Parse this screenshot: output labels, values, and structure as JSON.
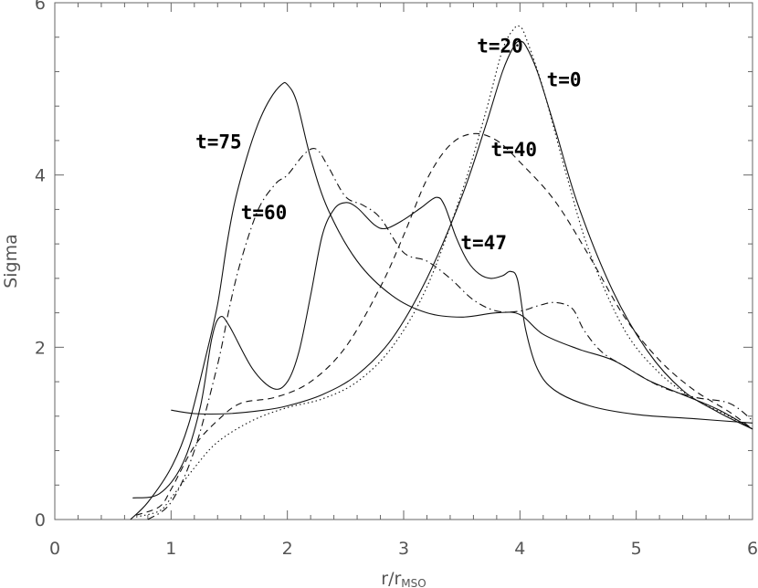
{
  "chart_data": {
    "type": "line",
    "xlabel": "r/r",
    "xlabel_sub": "MSO",
    "ylabel": "Sigma",
    "xlim": [
      0,
      6
    ],
    "ylim": [
      0,
      6
    ],
    "xticks": [
      "0",
      "1",
      "2",
      "3",
      "4",
      "5",
      "6"
    ],
    "yticks": [
      "0",
      "2",
      "4",
      "6"
    ],
    "grid": false,
    "series": [
      {
        "name": "t=0",
        "style": "solid",
        "points": [
          [
            1.0,
            1.27
          ],
          [
            1.2,
            1.23
          ],
          [
            1.5,
            1.23
          ],
          [
            1.8,
            1.27
          ],
          [
            2.0,
            1.32
          ],
          [
            2.3,
            1.45
          ],
          [
            2.6,
            1.68
          ],
          [
            2.9,
            2.1
          ],
          [
            3.2,
            2.8
          ],
          [
            3.5,
            3.75
          ],
          [
            3.7,
            4.55
          ],
          [
            3.85,
            5.2
          ],
          [
            3.95,
            5.5
          ],
          [
            4.0,
            5.55
          ],
          [
            4.05,
            5.5
          ],
          [
            4.15,
            5.2
          ],
          [
            4.3,
            4.55
          ],
          [
            4.5,
            3.65
          ],
          [
            4.8,
            2.65
          ],
          [
            5.1,
            1.95
          ],
          [
            5.4,
            1.5
          ],
          [
            5.7,
            1.25
          ],
          [
            6.0,
            1.05
          ]
        ]
      },
      {
        "name": "t=20",
        "style": "dotted",
        "points": [
          [
            0.7,
            0.03
          ],
          [
            0.9,
            0.1
          ],
          [
            1.0,
            0.25
          ],
          [
            1.2,
            0.6
          ],
          [
            1.4,
            0.9
          ],
          [
            1.7,
            1.15
          ],
          [
            2.0,
            1.3
          ],
          [
            2.3,
            1.4
          ],
          [
            2.6,
            1.6
          ],
          [
            2.9,
            2.0
          ],
          [
            3.2,
            2.7
          ],
          [
            3.5,
            3.8
          ],
          [
            3.7,
            4.7
          ],
          [
            3.85,
            5.45
          ],
          [
            3.95,
            5.7
          ],
          [
            4.0,
            5.72
          ],
          [
            4.05,
            5.6
          ],
          [
            4.2,
            5.0
          ],
          [
            4.4,
            4.0
          ],
          [
            4.6,
            3.1
          ],
          [
            4.9,
            2.2
          ],
          [
            5.2,
            1.7
          ],
          [
            5.5,
            1.4
          ],
          [
            5.8,
            1.2
          ],
          [
            6.0,
            1.05
          ]
        ]
      },
      {
        "name": "t=40",
        "style": "dashed",
        "points": [
          [
            0.7,
            0.05
          ],
          [
            0.9,
            0.15
          ],
          [
            1.0,
            0.35
          ],
          [
            1.2,
            0.85
          ],
          [
            1.4,
            1.15
          ],
          [
            1.6,
            1.35
          ],
          [
            1.9,
            1.42
          ],
          [
            2.2,
            1.6
          ],
          [
            2.5,
            2.0
          ],
          [
            2.8,
            2.7
          ],
          [
            3.0,
            3.3
          ],
          [
            3.2,
            3.95
          ],
          [
            3.4,
            4.35
          ],
          [
            3.6,
            4.48
          ],
          [
            3.8,
            4.4
          ],
          [
            4.0,
            4.15
          ],
          [
            4.3,
            3.7
          ],
          [
            4.6,
            3.05
          ],
          [
            4.9,
            2.35
          ],
          [
            5.2,
            1.85
          ],
          [
            5.5,
            1.5
          ],
          [
            5.8,
            1.25
          ],
          [
            6.0,
            1.05
          ]
        ]
      },
      {
        "name": "t=47",
        "style": "solid",
        "points": [
          [
            0.67,
            0.25
          ],
          [
            0.9,
            0.3
          ],
          [
            1.1,
            0.65
          ],
          [
            1.25,
            1.3
          ],
          [
            1.35,
            2.1
          ],
          [
            1.42,
            2.35
          ],
          [
            1.5,
            2.25
          ],
          [
            1.7,
            1.75
          ],
          [
            1.88,
            1.52
          ],
          [
            2.0,
            1.6
          ],
          [
            2.1,
            1.95
          ],
          [
            2.2,
            2.6
          ],
          [
            2.3,
            3.3
          ],
          [
            2.4,
            3.6
          ],
          [
            2.5,
            3.68
          ],
          [
            2.6,
            3.62
          ],
          [
            2.75,
            3.42
          ],
          [
            2.85,
            3.38
          ],
          [
            3.0,
            3.48
          ],
          [
            3.15,
            3.62
          ],
          [
            3.28,
            3.74
          ],
          [
            3.35,
            3.65
          ],
          [
            3.45,
            3.28
          ],
          [
            3.55,
            3.0
          ],
          [
            3.65,
            2.85
          ],
          [
            3.75,
            2.8
          ],
          [
            3.85,
            2.83
          ],
          [
            3.92,
            2.88
          ],
          [
            3.98,
            2.78
          ],
          [
            4.05,
            2.2
          ],
          [
            4.15,
            1.75
          ],
          [
            4.3,
            1.5
          ],
          [
            4.6,
            1.32
          ],
          [
            5.0,
            1.22
          ],
          [
            5.5,
            1.17
          ],
          [
            6.0,
            1.12
          ]
        ]
      },
      {
        "name": "t=60",
        "style": "dashdot",
        "points": [
          [
            0.8,
            0.0
          ],
          [
            1.0,
            0.2
          ],
          [
            1.2,
            0.8
          ],
          [
            1.4,
            1.8
          ],
          [
            1.5,
            2.45
          ],
          [
            1.6,
            3.0
          ],
          [
            1.75,
            3.6
          ],
          [
            1.9,
            3.9
          ],
          [
            2.0,
            4.0
          ],
          [
            2.15,
            4.25
          ],
          [
            2.25,
            4.3
          ],
          [
            2.35,
            4.1
          ],
          [
            2.5,
            3.75
          ],
          [
            2.65,
            3.65
          ],
          [
            2.8,
            3.5
          ],
          [
            3.0,
            3.1
          ],
          [
            3.2,
            3.0
          ],
          [
            3.4,
            2.8
          ],
          [
            3.6,
            2.55
          ],
          [
            3.8,
            2.42
          ],
          [
            4.0,
            2.42
          ],
          [
            4.15,
            2.48
          ],
          [
            4.3,
            2.52
          ],
          [
            4.45,
            2.45
          ],
          [
            4.55,
            2.2
          ],
          [
            4.7,
            1.95
          ],
          [
            4.9,
            1.78
          ],
          [
            5.2,
            1.55
          ],
          [
            5.5,
            1.42
          ],
          [
            5.8,
            1.35
          ],
          [
            6.0,
            1.15
          ]
        ]
      },
      {
        "name": "t=75",
        "style": "solid",
        "points": [
          [
            0.65,
            0.0
          ],
          [
            0.8,
            0.2
          ],
          [
            1.0,
            0.6
          ],
          [
            1.15,
            1.1
          ],
          [
            1.3,
            1.9
          ],
          [
            1.4,
            2.5
          ],
          [
            1.48,
            3.2
          ],
          [
            1.55,
            3.7
          ],
          [
            1.65,
            4.2
          ],
          [
            1.75,
            4.6
          ],
          [
            1.85,
            4.88
          ],
          [
            1.95,
            5.05
          ],
          [
            2.0,
            5.05
          ],
          [
            2.08,
            4.85
          ],
          [
            2.2,
            4.2
          ],
          [
            2.35,
            3.6
          ],
          [
            2.6,
            3.0
          ],
          [
            2.9,
            2.6
          ],
          [
            3.2,
            2.4
          ],
          [
            3.5,
            2.35
          ],
          [
            3.8,
            2.4
          ],
          [
            4.0,
            2.38
          ],
          [
            4.2,
            2.15
          ],
          [
            4.5,
            1.98
          ],
          [
            4.8,
            1.85
          ],
          [
            5.1,
            1.62
          ],
          [
            5.4,
            1.45
          ],
          [
            5.7,
            1.28
          ],
          [
            6.0,
            1.05
          ]
        ]
      }
    ],
    "annotations": [
      {
        "text": "t=20",
        "x": 3.63,
        "y": 5.42
      },
      {
        "text": "t=0",
        "x": 4.23,
        "y": 5.03
      },
      {
        "text": "t=75",
        "x": 1.21,
        "y": 4.31
      },
      {
        "text": "t=40",
        "x": 3.75,
        "y": 4.22
      },
      {
        "text": "t=60",
        "x": 1.6,
        "y": 3.49
      },
      {
        "text": "t=47",
        "x": 3.49,
        "y": 3.14
      }
    ]
  }
}
